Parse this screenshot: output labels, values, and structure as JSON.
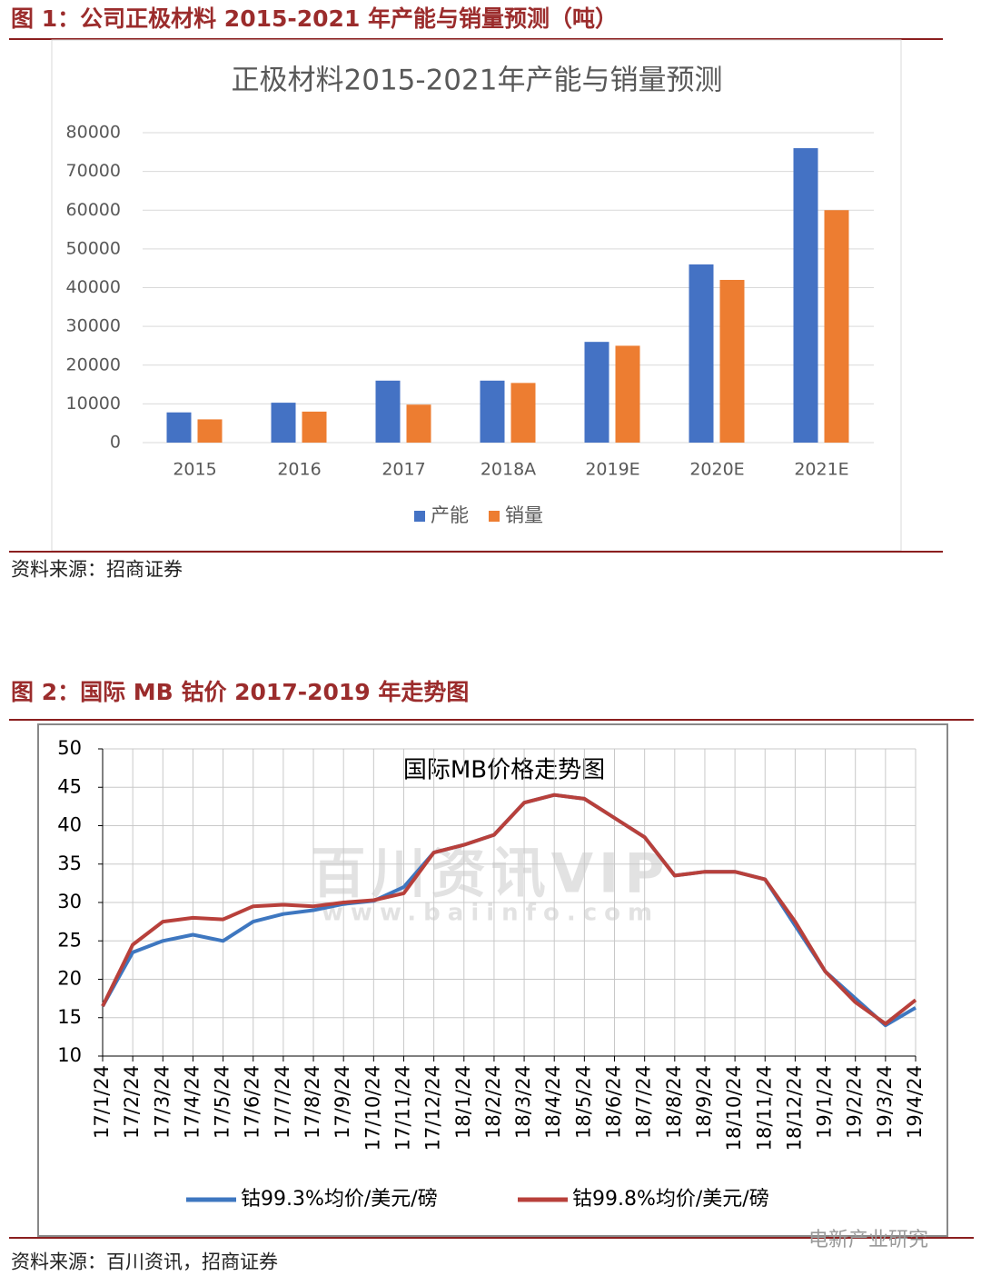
{
  "figures": [
    {
      "caption": "图 1：公司正极材料 2015-2021 年产能与销量预测（吨）",
      "source": "资料来源：招商证券"
    },
    {
      "caption": "图 2：国际 MB 钴价 2017-2019 年走势图",
      "source": "资料来源：百川资讯，招商证券"
    }
  ],
  "watermark": [
    "百川资讯VIP",
    "www.baiinfo.com"
  ],
  "wechat": "电新产业研究",
  "chart_data": [
    {
      "type": "bar",
      "title": "正极材料2015-2021年产能与销量预测",
      "categories": [
        "2015",
        "2016",
        "2017",
        "2018A",
        "2019E",
        "2020E",
        "2021E"
      ],
      "series": [
        {
          "name": "产能",
          "color": "#4472c4",
          "values": [
            7800,
            10300,
            16000,
            16000,
            26000,
            46000,
            76000
          ]
        },
        {
          "name": "销量",
          "color": "#ed7d31",
          "values": [
            6000,
            8000,
            9800,
            15400,
            25000,
            42000,
            60000
          ]
        }
      ],
      "ylim": [
        0,
        80000
      ],
      "yticks": [
        0,
        10000,
        20000,
        30000,
        40000,
        50000,
        60000,
        70000,
        80000
      ],
      "grid": true,
      "legend": "bottom"
    },
    {
      "type": "line",
      "title": "国际MB价格走势图",
      "x": [
        "17/1/24",
        "17/2/24",
        "17/3/24",
        "17/4/24",
        "17/5/24",
        "17/6/24",
        "17/7/24",
        "17/8/24",
        "17/9/24",
        "17/10/24",
        "17/11/24",
        "17/12/24",
        "18/1/24",
        "18/2/24",
        "18/3/24",
        "18/4/24",
        "18/5/24",
        "18/6/24",
        "18/7/24",
        "18/8/24",
        "18/9/24",
        "18/10/24",
        "18/11/24",
        "18/12/24",
        "19/1/24",
        "19/2/24",
        "19/3/24",
        "19/4/24"
      ],
      "series": [
        {
          "name": "钴99.3%均价/美元/磅",
          "color": "#3e77c0",
          "values": [
            16.5,
            23.5,
            25.0,
            25.8,
            25.0,
            27.5,
            28.5,
            29.0,
            29.8,
            30.2,
            32.0,
            36.5,
            37.5,
            38.8,
            43.0,
            44.0,
            43.5,
            41.0,
            38.5,
            33.5,
            34.0,
            34.0,
            33.0,
            27.0,
            21.0,
            17.5,
            14.0,
            16.3
          ]
        },
        {
          "name": "钴99.8%均价/美元/磅",
          "color": "#b8403b",
          "values": [
            16.5,
            24.5,
            27.5,
            28.0,
            27.8,
            29.5,
            29.7,
            29.5,
            30.0,
            30.3,
            31.2,
            36.5,
            37.5,
            38.8,
            43.0,
            44.0,
            43.5,
            41.0,
            38.5,
            33.5,
            34.0,
            34.0,
            33.0,
            27.5,
            21.0,
            17.0,
            14.2,
            17.3
          ]
        }
      ],
      "ylim": [
        10,
        50
      ],
      "yticks": [
        10,
        15,
        20,
        25,
        30,
        35,
        40,
        45,
        50
      ],
      "grid": true,
      "legend": "bottom"
    }
  ]
}
